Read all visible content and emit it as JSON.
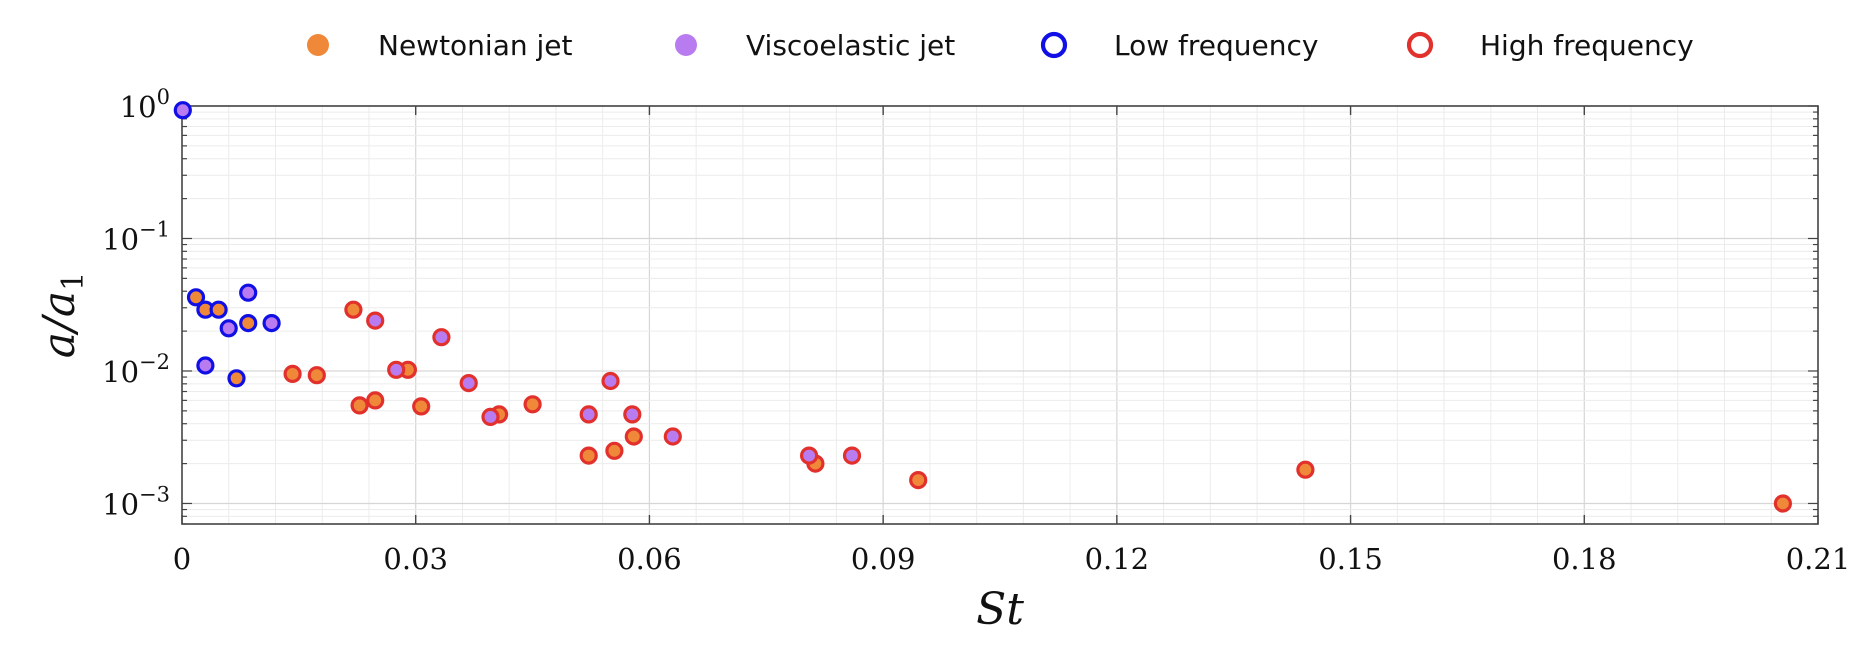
{
  "chart_data": {
    "type": "scatter",
    "xlabel": "St",
    "ylabel": "a/a1",
    "xlim": [
      0,
      0.21
    ],
    "ylim": [
      0.0007,
      1
    ],
    "y_scale": "log",
    "grid": true,
    "legend_position": "top",
    "x_ticks": [
      "0",
      "0.03",
      "0.06",
      "0.09",
      "0.12",
      "0.15",
      "0.18",
      "0.21"
    ],
    "x_tick_values": [
      0,
      0.03,
      0.06,
      0.09,
      0.12,
      0.15,
      0.18,
      0.21
    ],
    "y_ticks": [
      {
        "value": 1,
        "base": "10",
        "exp": "0"
      },
      {
        "value": 0.1,
        "base": "10",
        "exp": "−1"
      },
      {
        "value": 0.01,
        "base": "10",
        "exp": "−2"
      },
      {
        "value": 0.001,
        "base": "10",
        "exp": "−3"
      }
    ],
    "legend": [
      {
        "label": "Newtonian jet",
        "kind": "fill",
        "color": "#f0883a"
      },
      {
        "label": "Viscoelastic jet",
        "kind": "fill",
        "color": "#b97cf0"
      },
      {
        "label": "Low frequency",
        "kind": "ring",
        "color": "#1010e6"
      },
      {
        "label": "High frequency",
        "kind": "ring",
        "color": "#e2312c"
      }
    ],
    "colors": {
      "newtonian": "#f0883a",
      "viscoelastic": "#b97cf0",
      "low": "#1010e6",
      "high": "#e2312c"
    },
    "series": [
      {
        "fluid": "newtonian",
        "frequency": "low",
        "points": [
          [
            0.0018,
            0.036
          ],
          [
            0.003,
            0.029
          ],
          [
            0.0047,
            0.029
          ],
          [
            0.0085,
            0.023
          ],
          [
            0.007,
            0.0088
          ]
        ]
      },
      {
        "fluid": "viscoelastic",
        "frequency": "low",
        "points": [
          [
            0.0001,
            0.93
          ],
          [
            0.003,
            0.011
          ],
          [
            0.006,
            0.021
          ],
          [
            0.0085,
            0.039
          ],
          [
            0.0115,
            0.023
          ]
        ]
      },
      {
        "fluid": "newtonian",
        "frequency": "high",
        "points": [
          [
            0.0142,
            0.0095
          ],
          [
            0.0173,
            0.0093
          ],
          [
            0.022,
            0.029
          ],
          [
            0.0228,
            0.0055
          ],
          [
            0.0248,
            0.006
          ],
          [
            0.029,
            0.0102
          ],
          [
            0.0307,
            0.0054
          ],
          [
            0.0407,
            0.0047
          ],
          [
            0.045,
            0.0056
          ],
          [
            0.0522,
            0.0023
          ],
          [
            0.0555,
            0.0025
          ],
          [
            0.058,
            0.0032
          ],
          [
            0.0813,
            0.002
          ],
          [
            0.0945,
            0.0015
          ],
          [
            0.1442,
            0.0018
          ],
          [
            0.2055,
            0.001
          ]
        ]
      },
      {
        "fluid": "viscoelastic",
        "frequency": "high",
        "points": [
          [
            0.0248,
            0.024
          ],
          [
            0.0275,
            0.0102
          ],
          [
            0.0333,
            0.018
          ],
          [
            0.0368,
            0.0081
          ],
          [
            0.0396,
            0.0045
          ],
          [
            0.0522,
            0.0047
          ],
          [
            0.055,
            0.0084
          ],
          [
            0.0578,
            0.0047
          ],
          [
            0.063,
            0.0032
          ],
          [
            0.0805,
            0.0023
          ],
          [
            0.086,
            0.0023
          ]
        ]
      }
    ]
  }
}
